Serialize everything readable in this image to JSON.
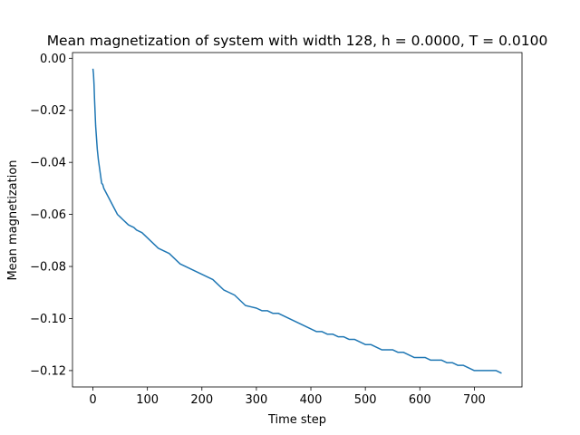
{
  "chart_data": {
    "type": "line",
    "title": "Mean magnetization of system with width 128, h = 0.0000, T = 0.0100",
    "xlabel": "Time step",
    "ylabel": "Mean magnetization",
    "xlim": [
      -37.5,
      787.5
    ],
    "ylim": [
      -0.1263,
      0.0022
    ],
    "x_ticks": [
      0,
      100,
      200,
      300,
      400,
      500,
      600,
      700
    ],
    "x_tick_labels": [
      "0",
      "100",
      "200",
      "300",
      "400",
      "500",
      "600",
      "700"
    ],
    "y_ticks": [
      0.0,
      -0.02,
      -0.04,
      -0.06,
      -0.08,
      -0.1,
      -0.12
    ],
    "y_tick_labels": [
      "0.00",
      "−0.02",
      "−0.04",
      "−0.06",
      "−0.08",
      "−0.10",
      "−0.12"
    ],
    "grid": false,
    "series": [
      {
        "color": "#1f77b4",
        "x": [
          0,
          1,
          2,
          3,
          4,
          5,
          6,
          7,
          8,
          9,
          10,
          12,
          14,
          16,
          18,
          20,
          25,
          30,
          35,
          40,
          45,
          50,
          55,
          60,
          65,
          70,
          75,
          80,
          90,
          100,
          110,
          120,
          130,
          140,
          150,
          160,
          170,
          180,
          190,
          200,
          210,
          220,
          230,
          240,
          250,
          260,
          270,
          280,
          290,
          300,
          310,
          320,
          330,
          340,
          350,
          360,
          370,
          380,
          390,
          400,
          410,
          420,
          430,
          440,
          450,
          460,
          470,
          480,
          490,
          500,
          510,
          520,
          530,
          540,
          550,
          560,
          570,
          580,
          590,
          600,
          610,
          620,
          630,
          640,
          650,
          660,
          670,
          680,
          690,
          700,
          710,
          720,
          730,
          740,
          750
        ],
        "y": [
          -0.004,
          -0.006,
          -0.01,
          -0.016,
          -0.021,
          -0.026,
          -0.029,
          -0.032,
          -0.035,
          -0.037,
          -0.039,
          -0.042,
          -0.045,
          -0.048,
          -0.0485,
          -0.05,
          -0.052,
          -0.054,
          -0.056,
          -0.058,
          -0.06,
          -0.061,
          -0.062,
          -0.063,
          -0.064,
          -0.0645,
          -0.065,
          -0.066,
          -0.067,
          -0.069,
          -0.071,
          -0.073,
          -0.074,
          -0.075,
          -0.077,
          -0.079,
          -0.08,
          -0.081,
          -0.082,
          -0.083,
          -0.084,
          -0.085,
          -0.087,
          -0.089,
          -0.09,
          -0.091,
          -0.093,
          -0.095,
          -0.0955,
          -0.096,
          -0.097,
          -0.097,
          -0.098,
          -0.098,
          -0.099,
          -0.1,
          -0.101,
          -0.102,
          -0.103,
          -0.104,
          -0.105,
          -0.105,
          -0.106,
          -0.106,
          -0.107,
          -0.107,
          -0.108,
          -0.108,
          -0.109,
          -0.11,
          -0.11,
          -0.111,
          -0.112,
          -0.112,
          -0.112,
          -0.113,
          -0.113,
          -0.114,
          -0.115,
          -0.115,
          -0.115,
          -0.116,
          -0.116,
          -0.116,
          -0.117,
          -0.117,
          -0.118,
          -0.118,
          -0.119,
          -0.12,
          -0.12,
          -0.12,
          -0.12,
          -0.12,
          -0.121
        ]
      }
    ]
  }
}
